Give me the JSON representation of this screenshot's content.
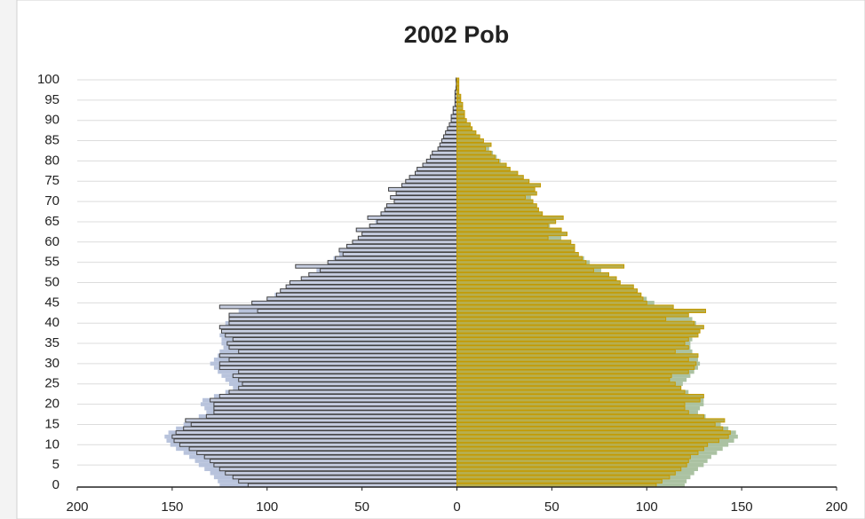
{
  "chart_data": {
    "type": "pyramid",
    "title": "2002 Pob",
    "categories": [
      0,
      null,
      null,
      null,
      null,
      5,
      null,
      null,
      null,
      null,
      10,
      null,
      null,
      null,
      null,
      15,
      null,
      null,
      null,
      null,
      20,
      null,
      null,
      null,
      null,
      25,
      null,
      null,
      null,
      null,
      30,
      null,
      null,
      null,
      null,
      35,
      null,
      null,
      null,
      null,
      40,
      null,
      null,
      null,
      null,
      45,
      null,
      null,
      null,
      null,
      50,
      null,
      null,
      null,
      null,
      55,
      null,
      null,
      null,
      null,
      60,
      null,
      null,
      null,
      null,
      65,
      null,
      null,
      null,
      null,
      70,
      null,
      null,
      null,
      null,
      75,
      null,
      null,
      null,
      null,
      80,
      null,
      null,
      null,
      null,
      85,
      null,
      null,
      null,
      null,
      90,
      null,
      null,
      null,
      null,
      95,
      null,
      null,
      null,
      null,
      100
    ],
    "xlim": [
      -200,
      200
    ],
    "xticks": [
      {
        "value": -200,
        "label": "200"
      },
      {
        "value": -150,
        "label": "150"
      },
      {
        "value": -100,
        "label": "100"
      },
      {
        "value": -50,
        "label": "50"
      },
      0,
      50,
      100,
      150,
      200
    ],
    "grid": true,
    "series": [
      {
        "style": "filled",
        "color": "#b8c3dc",
        "values": [
          -125,
          -126,
          -128,
          -130,
          -133,
          -136,
          -138,
          -141,
          -144,
          -148,
          -151,
          -153,
          -154,
          -152,
          -148,
          -144,
          -140,
          -136,
          -132,
          -133,
          -135,
          -134,
          -128,
          -122,
          -118,
          -120,
          -122,
          -124,
          -126,
          -128,
          -130,
          -128,
          -126,
          -125,
          -123,
          -124,
          -124,
          -125,
          -124,
          -123,
          -122,
          -120,
          -118,
          -115,
          -110,
          -105,
          -100,
          -96,
          -93,
          -90,
          -86,
          -82,
          -78,
          -74,
          -71,
          -68,
          -65,
          -62,
          -60,
          -58,
          -55,
          -52,
          -50,
          -48,
          -45,
          -43,
          -41,
          -39,
          -37,
          -35,
          -33,
          -32,
          -31,
          -30,
          -28,
          -26,
          -24,
          -22,
          -20,
          -18,
          -16,
          -14,
          -12,
          -10,
          -9,
          -8,
          -7,
          -6,
          -5,
          -4,
          -3,
          -2.5,
          -2,
          -1.5,
          -1,
          -1,
          -0.8,
          -0.5,
          -0.4,
          -0.3,
          -0.3
        ]
      },
      {
        "style": "filled",
        "color": "#abc2a2",
        "values": [
          120,
          121,
          123,
          125,
          127,
          130,
          132,
          134,
          137,
          140,
          143,
          146,
          148,
          147,
          143,
          139,
          135,
          131,
          127,
          128,
          130,
          130,
          127,
          122,
          118,
          119,
          121,
          123,
          125,
          127,
          128,
          127,
          125,
          124,
          123,
          123,
          124,
          126,
          127,
          127,
          126,
          124,
          122,
          118,
          110,
          104,
          100,
          96,
          93,
          90,
          86,
          82,
          79,
          76,
          73,
          70,
          67,
          64,
          62,
          60,
          58,
          55,
          53,
          51,
          49,
          47,
          45,
          43,
          42,
          41,
          40,
          39,
          38,
          37,
          36,
          34,
          32,
          30,
          28,
          26,
          23,
          21,
          19,
          17,
          15,
          13,
          11,
          9,
          8,
          6,
          5,
          4,
          3,
          2.5,
          2,
          1.5,
          1,
          0.8,
          0.6,
          0.4,
          0.3
        ]
      },
      {
        "style": "outline",
        "color": "#404040",
        "fill": "#c6cde0",
        "values": [
          -110,
          -115,
          -118,
          -122,
          -125,
          -128,
          -130,
          -133,
          -137,
          -141,
          -146,
          -149,
          -150,
          -148,
          -144,
          -140,
          -143,
          -132,
          -128,
          -128,
          -128,
          -130,
          -125,
          -120,
          -115,
          -113,
          -115,
          -118,
          -115,
          -125,
          -125,
          -120,
          -125,
          -115,
          -120,
          -121,
          -118,
          -122,
          -124,
          -125,
          -120,
          -120,
          -120,
          -105,
          -125,
          -108,
          -100,
          -95,
          -93,
          -90,
          -88,
          -82,
          -78,
          -72,
          -85,
          -68,
          -64,
          -60,
          -62,
          -58,
          -55,
          -52,
          -50,
          -53,
          -46,
          -42,
          -47,
          -40,
          -38,
          -37,
          -33,
          -35,
          -32,
          -36,
          -29,
          -27,
          -25,
          -22,
          -21,
          -18,
          -16,
          -14,
          -13,
          -10,
          -9,
          -8,
          -7,
          -6,
          -5,
          -4,
          -3,
          -3,
          -2,
          -2,
          -1,
          -1,
          -1,
          -1,
          -0.5,
          -0.3,
          -0.5
        ]
      },
      {
        "style": "outline",
        "color": "#c49a00",
        "fill": "#b7ae4e",
        "values": [
          105,
          108,
          112,
          115,
          118,
          121,
          122,
          123,
          127,
          130,
          132,
          138,
          143,
          144,
          140,
          136,
          141,
          130,
          122,
          120,
          120,
          128,
          130,
          120,
          118,
          115,
          112,
          113,
          122,
          125,
          126,
          122,
          127,
          115,
          122,
          120,
          122,
          127,
          128,
          130,
          125,
          110,
          122,
          131,
          114,
          100,
          98,
          97,
          95,
          93,
          86,
          84,
          80,
          72,
          88,
          68,
          66,
          64,
          62,
          62,
          60,
          48,
          58,
          55,
          48,
          52,
          56,
          45,
          43,
          42,
          40,
          36,
          42,
          41,
          44,
          38,
          35,
          32,
          28,
          26,
          22,
          20,
          18,
          15,
          18,
          14,
          12,
          10,
          8,
          7,
          5,
          4,
          4,
          3,
          3,
          2,
          2,
          1,
          1,
          1,
          1
        ]
      }
    ]
  }
}
